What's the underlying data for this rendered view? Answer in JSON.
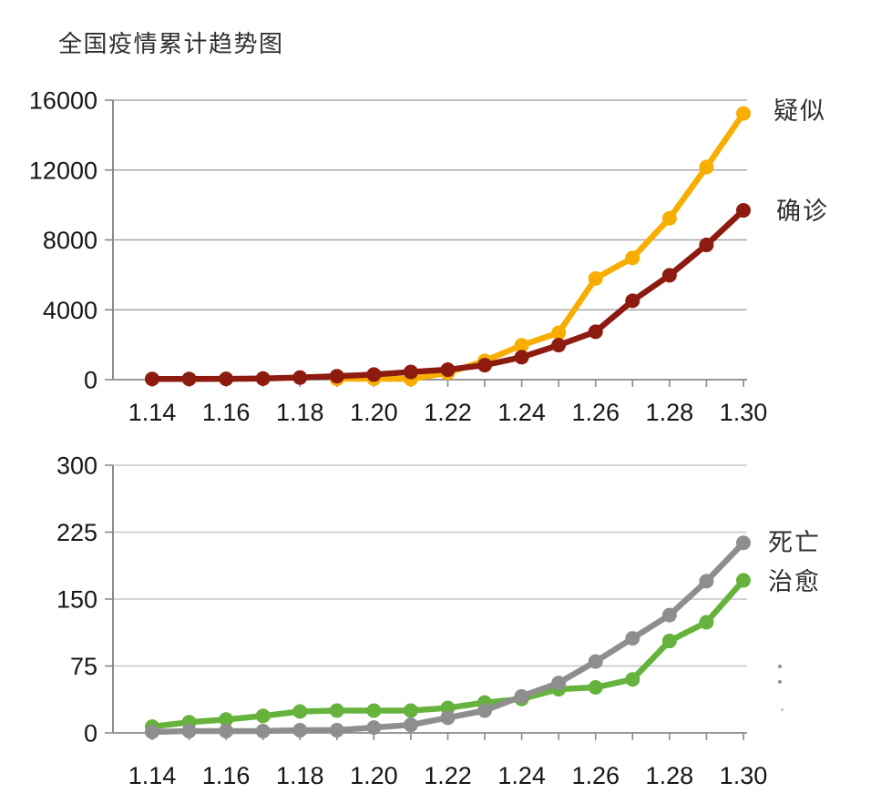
{
  "page": {
    "title": "全国疫情累计趋势图"
  },
  "colors": {
    "suspected": "#F8AE01",
    "confirmed": "#8D1B10",
    "deaths": "#8E8E8E",
    "cured": "#65B23D",
    "axis": "#8A8A8A",
    "grid_top": "#A9A9A9",
    "grid_bottom": "#C6C6C6",
    "tick_label": "#161616"
  },
  "chart_data": [
    {
      "type": "line",
      "title": "",
      "xlabel": "",
      "ylabel": "",
      "x": [
        "1.14",
        "1.15",
        "1.16",
        "1.17",
        "1.18",
        "1.19",
        "1.20",
        "1.21",
        "1.22",
        "1.23",
        "1.24",
        "1.25",
        "1.26",
        "1.27",
        "1.28",
        "1.29",
        "1.30"
      ],
      "x_tick_labels": [
        "1.14",
        "1.16",
        "1.18",
        "1.20",
        "1.22",
        "1.24",
        "1.26",
        "1.28",
        "1.30"
      ],
      "ylim": [
        0,
        16000
      ],
      "yticks": [
        0,
        4000,
        8000,
        12000,
        16000
      ],
      "ytick_labels": [
        "0",
        "4000",
        "8000",
        "12000",
        "16000"
      ],
      "grid": true,
      "legend_position": "right of line ends",
      "series": [
        {
          "name": "疑似",
          "color_key": "suspected",
          "values": [
            null,
            null,
            null,
            null,
            null,
            50,
            54,
            37,
            393,
            1072,
            1965,
            2684,
            5794,
            6973,
            9239,
            12167,
            15238
          ]
        },
        {
          "name": "确诊",
          "color_key": "confirmed",
          "values": [
            41,
            41,
            45,
            62,
            121,
            198,
            291,
            440,
            571,
            830,
            1287,
            1975,
            2744,
            4515,
            5974,
            7711,
            9692
          ]
        }
      ]
    },
    {
      "type": "line",
      "title": "",
      "xlabel": "",
      "ylabel": "",
      "x": [
        "1.14",
        "1.15",
        "1.16",
        "1.17",
        "1.18",
        "1.19",
        "1.20",
        "1.21",
        "1.22",
        "1.23",
        "1.24",
        "1.25",
        "1.26",
        "1.27",
        "1.28",
        "1.29",
        "1.30"
      ],
      "x_tick_labels": [
        "1.14",
        "1.16",
        "1.18",
        "1.20",
        "1.22",
        "1.24",
        "1.26",
        "1.28",
        "1.30"
      ],
      "ylim": [
        0,
        300
      ],
      "yticks": [
        0,
        75,
        150,
        225,
        300
      ],
      "ytick_labels": [
        "0",
        "75",
        "150",
        "225",
        "300"
      ],
      "grid": true,
      "legend_position": "right of line ends",
      "series": [
        {
          "name": "治愈",
          "color_key": "cured",
          "values": [
            7,
            12,
            15,
            19,
            24,
            25,
            25,
            25,
            28,
            34,
            38,
            49,
            51,
            60,
            103,
            124,
            171
          ]
        },
        {
          "name": "死亡",
          "color_key": "deaths",
          "values": [
            1,
            2,
            2,
            2,
            3,
            3,
            6,
            9,
            17,
            25,
            41,
            56,
            80,
            106,
            132,
            170,
            213
          ]
        }
      ]
    }
  ]
}
